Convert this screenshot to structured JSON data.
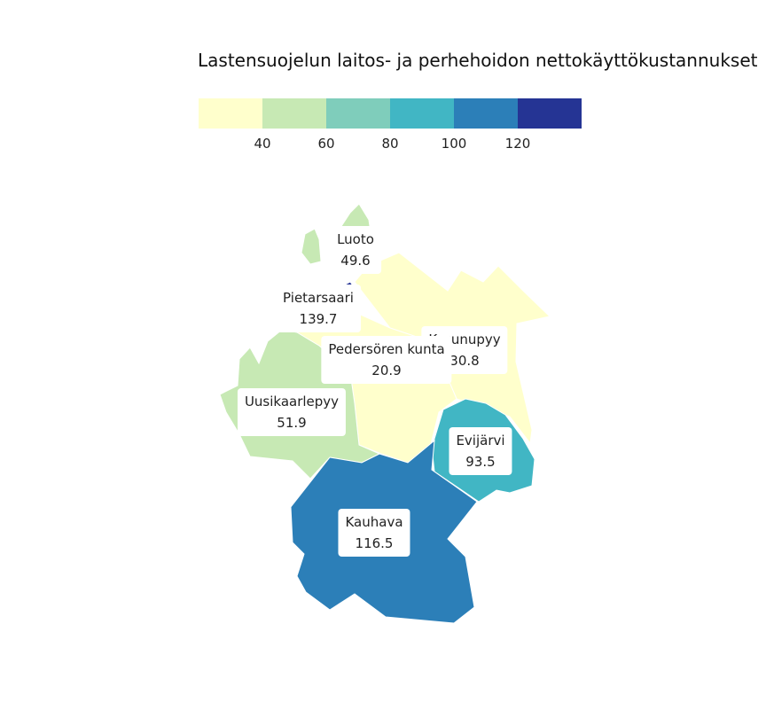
{
  "title": "Lastensuojelun laitos- ja perhehoidon nettokäyttökustannukset",
  "legend": {
    "colors": [
      "#ffffcc",
      "#c7e9b4",
      "#7fcdbb",
      "#41b6c4",
      "#2c7fb8",
      "#253494"
    ],
    "ticks": [
      "40",
      "60",
      "80",
      "100",
      "120"
    ]
  },
  "regions": [
    {
      "name": "Luoto",
      "value": "49.6",
      "color": "#c7e9b4"
    },
    {
      "name": "Pietarsaari",
      "value": "139.7",
      "color": "#253494"
    },
    {
      "name": "Kruunupyy",
      "value": "30.8",
      "color": "#ffffcc"
    },
    {
      "name": "Pedersören kunta",
      "value": "20.9",
      "color": "#ffffcc"
    },
    {
      "name": "Uusikaarlepyy",
      "value": "51.9",
      "color": "#c7e9b4"
    },
    {
      "name": "Evijärvi",
      "value": "93.5",
      "color": "#41b6c4"
    },
    {
      "name": "Kauhava",
      "value": "116.5",
      "color": "#2c7fb8"
    }
  ]
}
